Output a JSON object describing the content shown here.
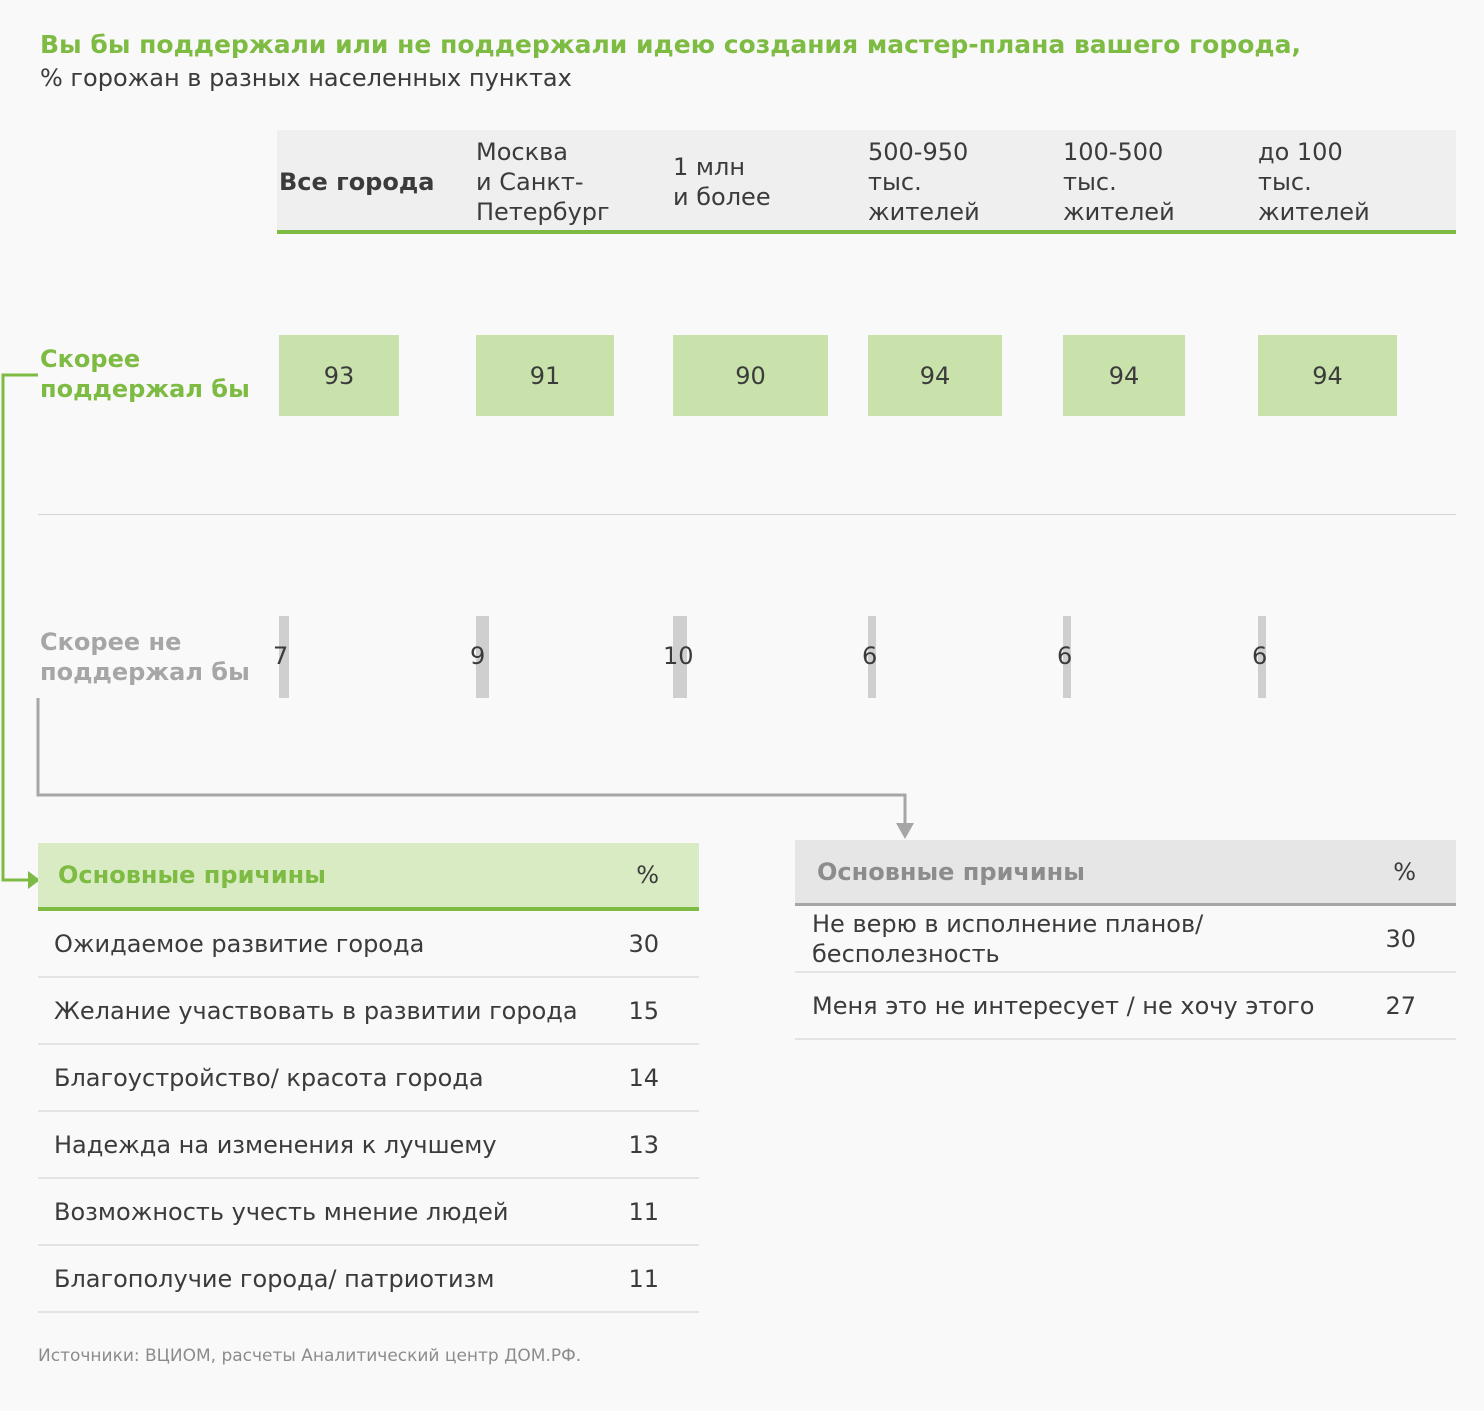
{
  "header": {
    "title": "Вы бы поддержали или не поддержали идею создания мастер-плана вашего города,",
    "subtitle": "% горожан в разных населенных пунктах"
  },
  "colors": {
    "accent_green": "#7dbb42",
    "support_fill": "#c9e1ab",
    "oppose_fill": "#cfcfcf",
    "muted_gray": "#a6a6a6"
  },
  "chart_data": {
    "type": "table",
    "categories": [
      "Все города",
      "Москва\nи Санкт-\nПетербург",
      "1 млн\nи более",
      "500-950\nтыс.\nжителей",
      "100-500\nтыс.\nжителей",
      "до 100\nтыс.\nжителей"
    ],
    "series": [
      {
        "name": "Скорее\nподдержал бы",
        "values": [
          93,
          91,
          90,
          94,
          94,
          94
        ]
      },
      {
        "name": "Скорее не\nподдержал бы",
        "values": [
          7,
          9,
          10,
          6,
          6,
          6
        ]
      }
    ]
  },
  "support_reasons": {
    "header": "Основные причины",
    "pct_label": "%",
    "rows": [
      {
        "label": "Ожидаемое развитие города",
        "value": "30"
      },
      {
        "label": "Желание участвовать в развитии города",
        "value": "15"
      },
      {
        "label": "Благоустройство/ красота города",
        "value": "14"
      },
      {
        "label": "Надежда на изменения к лучшему",
        "value": "13"
      },
      {
        "label": "Возможность учесть мнение людей",
        "value": "11"
      },
      {
        "label": "Благополучие города/ патриотизм",
        "value": "11"
      }
    ]
  },
  "oppose_reasons": {
    "header": "Основные причины",
    "pct_label": "%",
    "rows": [
      {
        "label": "Не верю в исполнение планов/\nбесполезность",
        "value": "30"
      },
      {
        "label": "Меня это не интересует / не хочу этого",
        "value": "27"
      }
    ]
  },
  "footer": {
    "source": "Источники: ВЦИОМ, расчеты Аналитический центр ДОМ.РФ."
  }
}
